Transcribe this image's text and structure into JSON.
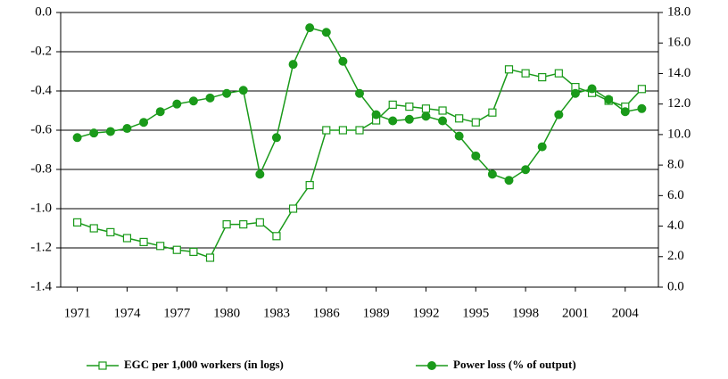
{
  "chart_data": {
    "type": "line",
    "x": [
      1971,
      1972,
      1973,
      1974,
      1975,
      1976,
      1977,
      1978,
      1979,
      1980,
      1981,
      1982,
      1983,
      1984,
      1985,
      1986,
      1987,
      1988,
      1989,
      1990,
      1991,
      1992,
      1993,
      1994,
      1995,
      1996,
      1997,
      1998,
      1999,
      2000,
      2001,
      2002,
      2003,
      2004,
      2005
    ],
    "xlim": [
      1970,
      2006
    ],
    "xticks": [
      1971,
      1974,
      1977,
      1980,
      1983,
      1986,
      1989,
      1992,
      1995,
      1998,
      2001,
      2004
    ],
    "ylim": [
      -1.4,
      0
    ],
    "yticks": [
      {
        "value": -1.4,
        "label": "-1.4"
      },
      {
        "value": -1.2,
        "label": "-1.2"
      },
      {
        "value": -1,
        "label": "-1.0"
      },
      {
        "value": -0.8,
        "label": "-0.8"
      },
      {
        "value": -0.6,
        "label": "-0.6"
      },
      {
        "value": -0.4,
        "label": "-0.4"
      },
      {
        "value": -0.2,
        "label": "-0.2"
      },
      {
        "value": 0,
        "label": "0.0"
      }
    ],
    "y2lim": [
      0,
      18
    ],
    "y2ticks": [
      {
        "value": 0,
        "label": "0.0"
      },
      {
        "value": 2,
        "label": "2.0"
      },
      {
        "value": 4,
        "label": "4.0"
      },
      {
        "value": 6,
        "label": "6.0"
      },
      {
        "value": 8,
        "label": "8.0"
      },
      {
        "value": 10,
        "label": "10.0"
      },
      {
        "value": 12,
        "label": "12.0"
      },
      {
        "value": 14,
        "label": "14.0"
      },
      {
        "value": 16,
        "label": "16.0"
      },
      {
        "value": 18,
        "label": "18.0"
      }
    ],
    "grid": true,
    "legend": "bottom",
    "series": [
      {
        "name": "EGC per 1,000 workers (in logs)",
        "color": "#1a9a1a",
        "marker": "hollow-square",
        "values": [
          -1.07,
          -1.1,
          -1.12,
          -1.15,
          -1.17,
          -1.19,
          -1.21,
          -1.22,
          -1.25,
          -1.08,
          -1.08,
          -1.07,
          -1.14,
          -1.0,
          -0.88,
          -0.6,
          -0.6,
          -0.6,
          -0.55,
          -0.47,
          -0.48,
          -0.49,
          -0.5,
          -0.54,
          -0.56,
          -0.51,
          -0.29,
          -0.31,
          -0.33,
          -0.31,
          -0.38,
          -0.41,
          -0.45,
          -0.48,
          -0.39
        ]
      },
      {
        "name": "Power loss (% of output)",
        "color": "#1a9a1a",
        "marker": "filled-circle",
        "axis": "y2",
        "values": [
          9.8,
          10.1,
          10.2,
          10.4,
          10.8,
          11.5,
          12.0,
          12.2,
          12.4,
          12.7,
          12.9,
          7.4,
          9.8,
          14.6,
          17.0,
          16.7,
          14.8,
          12.7,
          11.3,
          10.9,
          11.0,
          11.2,
          10.9,
          9.9,
          8.6,
          7.4,
          7.0,
          7.7,
          9.2,
          11.3,
          12.7,
          13.0,
          12.3,
          11.5,
          11.7
        ]
      }
    ]
  }
}
